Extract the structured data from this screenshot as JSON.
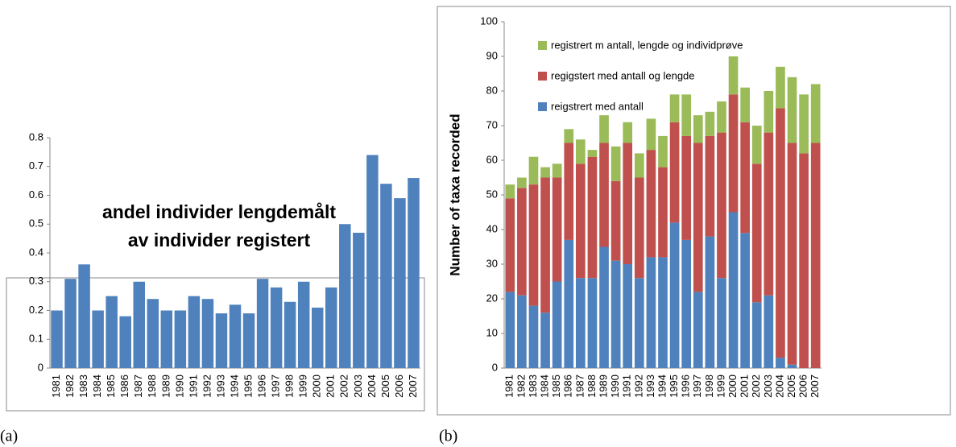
{
  "chart_data": [
    {
      "type": "bar",
      "caption": "(a)",
      "categories": [
        "1981",
        "1982",
        "1983",
        "1984",
        "1985",
        "1986",
        "1987",
        "1988",
        "1989",
        "1990",
        "1991",
        "1992",
        "1993",
        "1994",
        "1995",
        "1996",
        "1997",
        "1998",
        "1999",
        "2000",
        "2001",
        "2002",
        "2003",
        "2004",
        "2005",
        "2006",
        "2007"
      ],
      "values": [
        0.2,
        0.31,
        0.36,
        0.2,
        0.25,
        0.18,
        0.3,
        0.24,
        0.2,
        0.2,
        0.25,
        0.24,
        0.19,
        0.22,
        0.19,
        0.31,
        0.28,
        0.23,
        0.3,
        0.21,
        0.28,
        0.5,
        0.47,
        0.74,
        0.64,
        0.59,
        0.66
      ],
      "color": "#4f81bd",
      "annotations": [
        "andel  individer lengdemålt",
        "av  individer registert"
      ],
      "ylim": [
        0,
        0.8
      ],
      "yticks": [
        0,
        0.1,
        0.2,
        0.3,
        0.4,
        0.5,
        0.6,
        0.7,
        0.8
      ],
      "grid": false
    },
    {
      "type": "stacked_bar",
      "caption": "(b)",
      "ylabel": "Number of taxa recorded",
      "categories": [
        "1981",
        "1982",
        "1983",
        "1984",
        "1985",
        "1986",
        "1987",
        "1988",
        "1989",
        "1990",
        "1991",
        "1992",
        "1993",
        "1994",
        "1995",
        "1996",
        "1997",
        "1998",
        "1999",
        "2000",
        "2001",
        "2002",
        "2003",
        "2004",
        "2005",
        "2006",
        "2007"
      ],
      "series": [
        {
          "name": "reigstrert med antall",
          "color": "#4f81bd",
          "values": [
            22,
            21,
            18,
            16,
            25,
            37,
            26,
            26,
            35,
            31,
            30,
            26,
            32,
            32,
            42,
            37,
            22,
            38,
            26,
            45,
            39,
            19,
            21,
            3,
            1,
            0,
            0
          ]
        },
        {
          "name": "regigstert med antall og lengde",
          "color": "#c0504d",
          "values": [
            27,
            31,
            35,
            39,
            30,
            28,
            33,
            35,
            30,
            23,
            35,
            29,
            31,
            26,
            29,
            30,
            43,
            29,
            42,
            34,
            32,
            40,
            47,
            72,
            64,
            62,
            65
          ]
        },
        {
          "name": "registrert m antall, lengde og individprøve",
          "color": "#9bbb59",
          "values": [
            4,
            3,
            8,
            3,
            4,
            4,
            7,
            2,
            8,
            10,
            6,
            7,
            9,
            9,
            8,
            12,
            8,
            7,
            9,
            11,
            10,
            11,
            12,
            12,
            19,
            17,
            17
          ]
        }
      ],
      "ylim": [
        0,
        100
      ],
      "yticks": [
        0,
        10,
        20,
        30,
        40,
        50,
        60,
        70,
        80,
        90,
        100
      ],
      "grid": false,
      "legend": "top-left"
    }
  ]
}
